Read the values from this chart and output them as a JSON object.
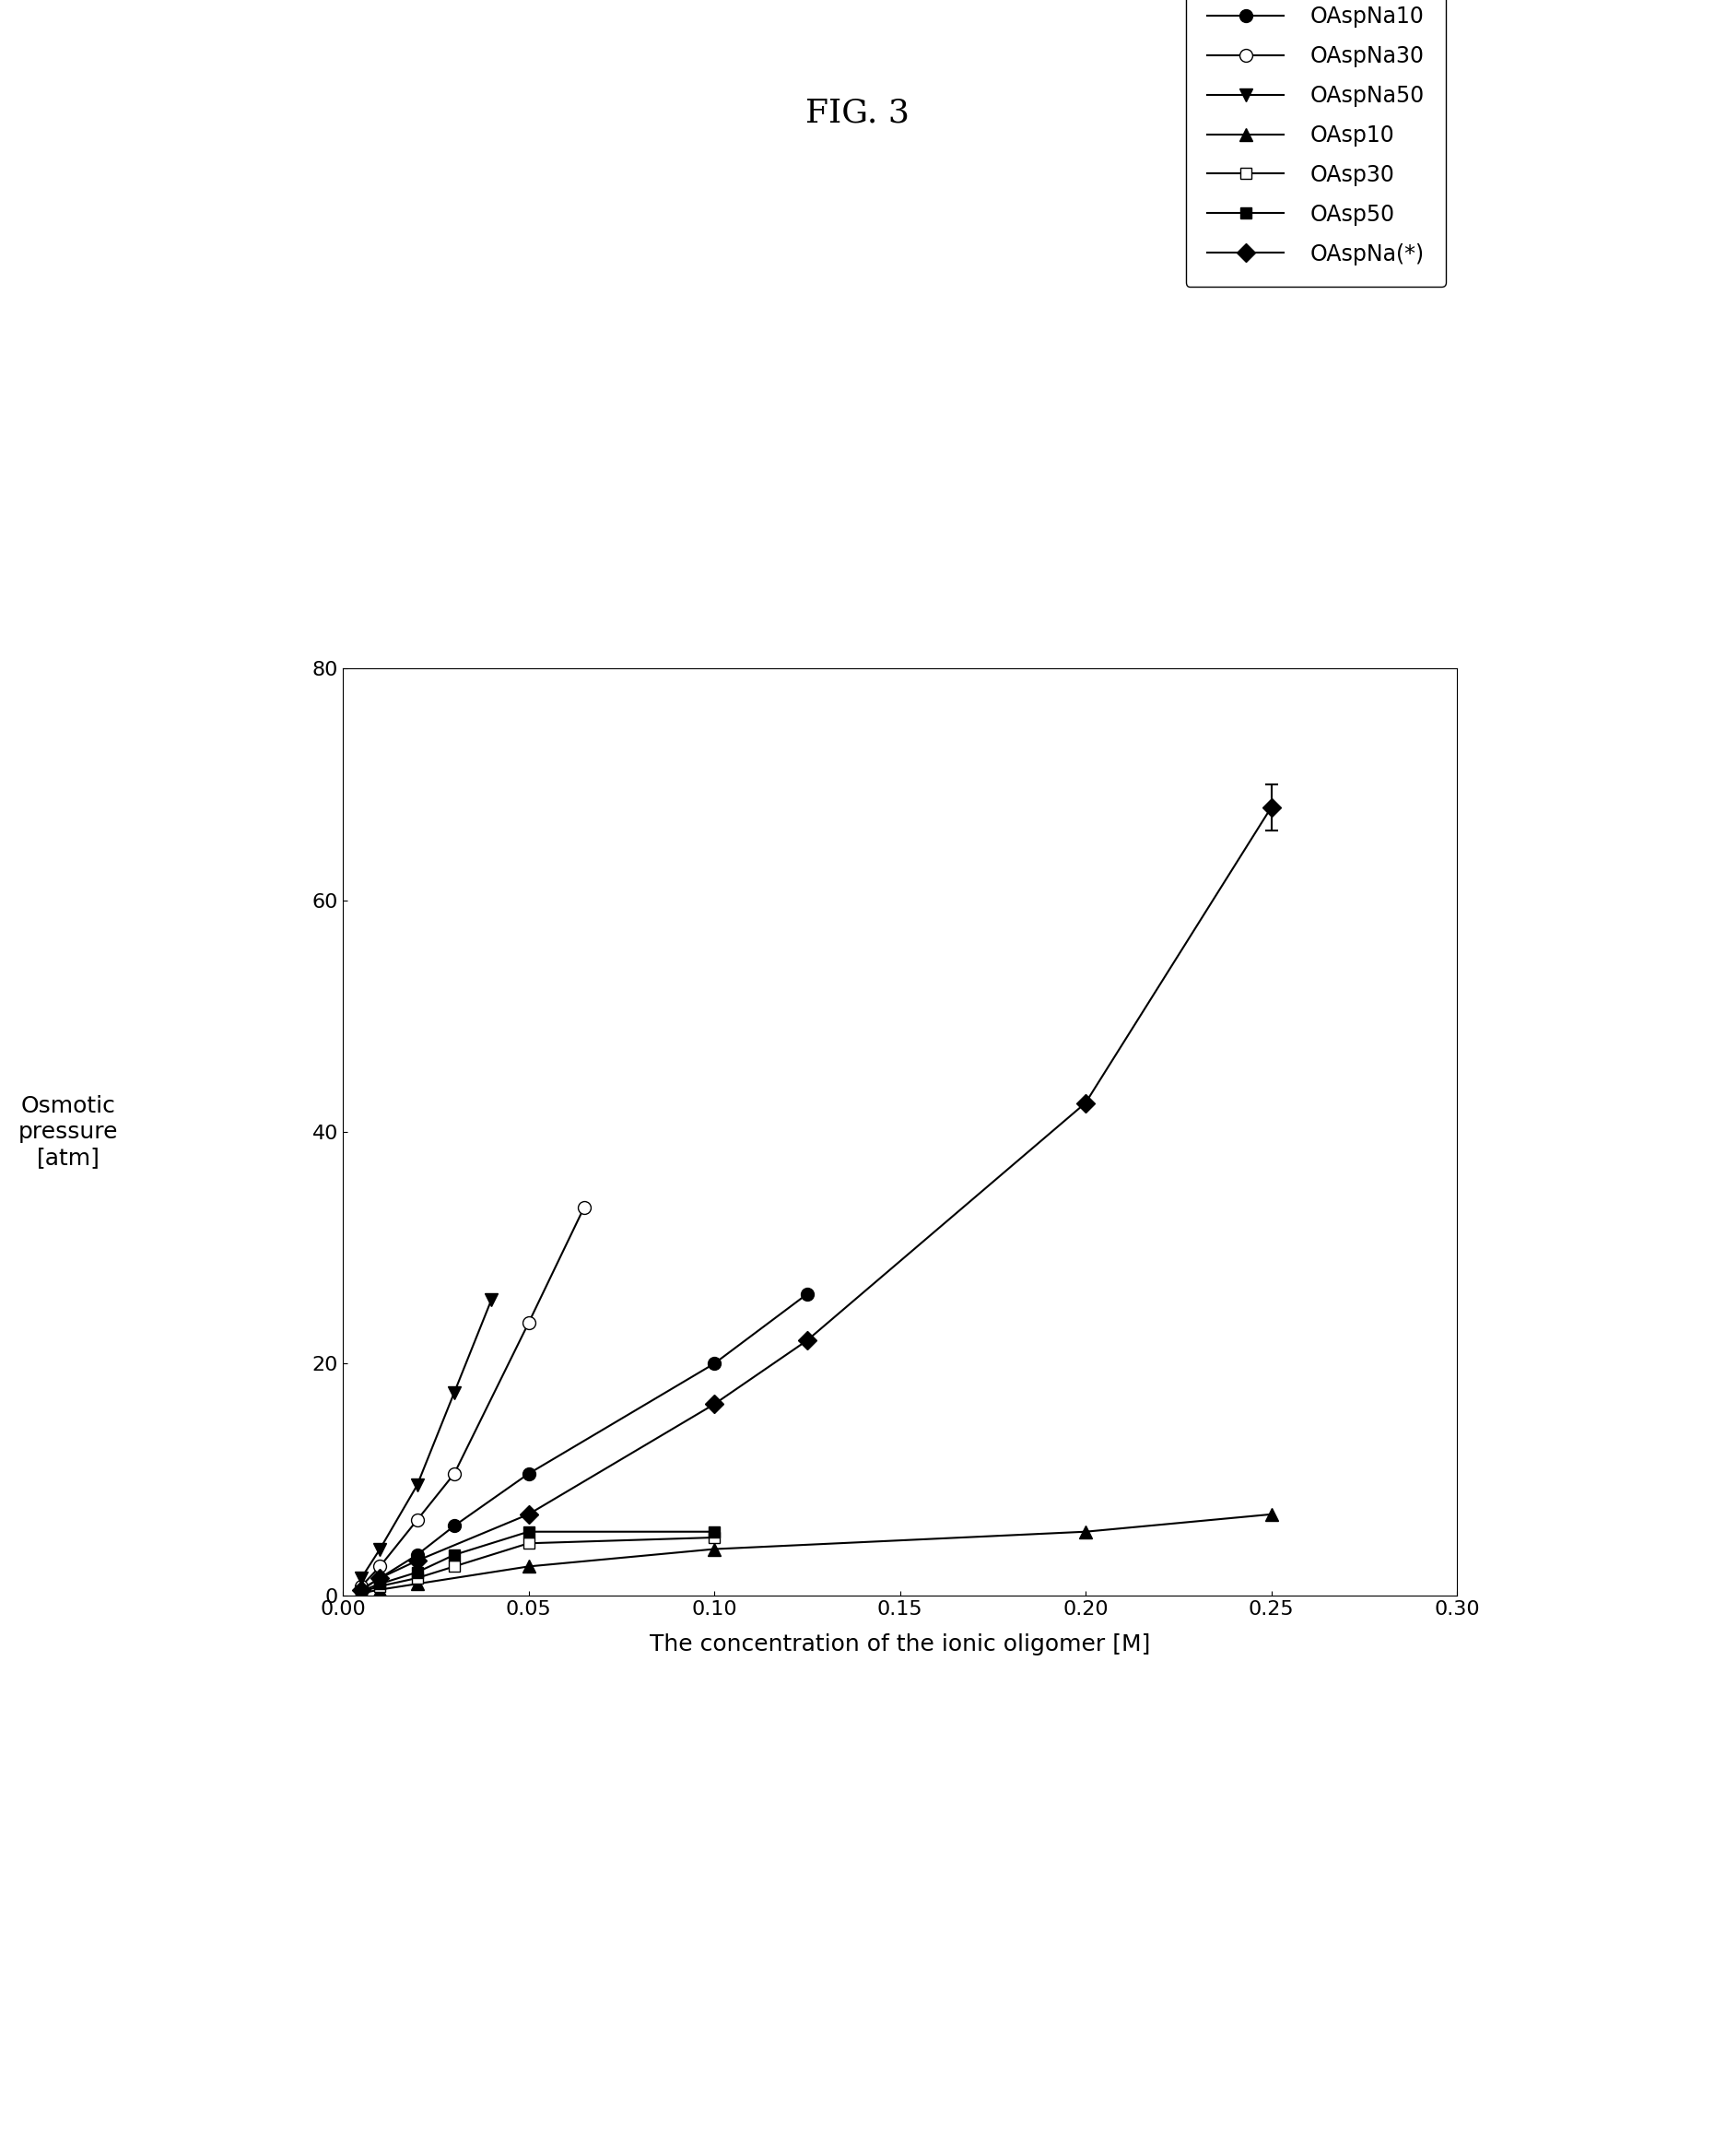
{
  "title": "FIG. 3",
  "xlabel": "The concentration of the ionic oligomer [M]",
  "ylabel_lines": [
    "Osmotic",
    "pressure",
    "[atm]"
  ],
  "xlim": [
    0.0,
    0.3
  ],
  "ylim": [
    0,
    80
  ],
  "xticks": [
    0.0,
    0.05,
    0.1,
    0.15,
    0.2,
    0.25,
    0.3
  ],
  "yticks": [
    0,
    20,
    40,
    60,
    80
  ],
  "series": [
    {
      "label": "OAspNa10",
      "x": [
        0.005,
        0.01,
        0.02,
        0.03,
        0.05,
        0.1,
        0.125
      ],
      "y": [
        0.5,
        1.5,
        3.5,
        6.0,
        10.5,
        20.0,
        26.0
      ],
      "marker": "o",
      "fillstyle": "full",
      "color": "black",
      "linewidth": 1.5,
      "markersize": 10
    },
    {
      "label": "OAspNa30",
      "x": [
        0.005,
        0.01,
        0.02,
        0.03,
        0.05,
        0.065
      ],
      "y": [
        0.8,
        2.5,
        6.5,
        10.5,
        23.5,
        33.5
      ],
      "marker": "o",
      "fillstyle": "none",
      "color": "black",
      "linewidth": 1.5,
      "markersize": 10
    },
    {
      "label": "OAspNa50",
      "x": [
        0.005,
        0.01,
        0.02,
        0.03,
        0.04
      ],
      "y": [
        1.5,
        4.0,
        9.5,
        17.5,
        25.5
      ],
      "marker": "v",
      "fillstyle": "full",
      "color": "black",
      "linewidth": 1.5,
      "markersize": 10
    },
    {
      "label": "OAsp10",
      "x": [
        0.005,
        0.01,
        0.02,
        0.05,
        0.1,
        0.2,
        0.25
      ],
      "y": [
        0.2,
        0.5,
        1.0,
        2.5,
        4.0,
        5.5,
        7.0
      ],
      "marker": "^",
      "fillstyle": "full",
      "color": "black",
      "linewidth": 1.5,
      "markersize": 10
    },
    {
      "label": "OAsp30",
      "x": [
        0.005,
        0.01,
        0.02,
        0.03,
        0.05,
        0.1
      ],
      "y": [
        0.3,
        0.8,
        1.5,
        2.5,
        4.5,
        5.0
      ],
      "marker": "s",
      "fillstyle": "none",
      "color": "black",
      "linewidth": 1.5,
      "markersize": 9
    },
    {
      "label": "OAsp50",
      "x": [
        0.005,
        0.01,
        0.02,
        0.03,
        0.05,
        0.1
      ],
      "y": [
        0.4,
        1.0,
        2.0,
        3.5,
        5.5,
        5.5
      ],
      "marker": "s",
      "fillstyle": "full",
      "color": "black",
      "linewidth": 1.5,
      "markersize": 9
    },
    {
      "label": "OAspNa(*)",
      "x": [
        0.005,
        0.01,
        0.02,
        0.05,
        0.1,
        0.125,
        0.2,
        0.25
      ],
      "y": [
        0.5,
        1.5,
        3.0,
        7.0,
        16.5,
        22.0,
        42.5,
        68.0
      ],
      "yerr_last": 2.0,
      "marker": "D",
      "fillstyle": "full",
      "color": "black",
      "linewidth": 1.5,
      "markersize": 10
    }
  ],
  "background_color": "#ffffff",
  "title_fontsize": 26,
  "label_fontsize": 18,
  "tick_fontsize": 16,
  "legend_fontsize": 17
}
